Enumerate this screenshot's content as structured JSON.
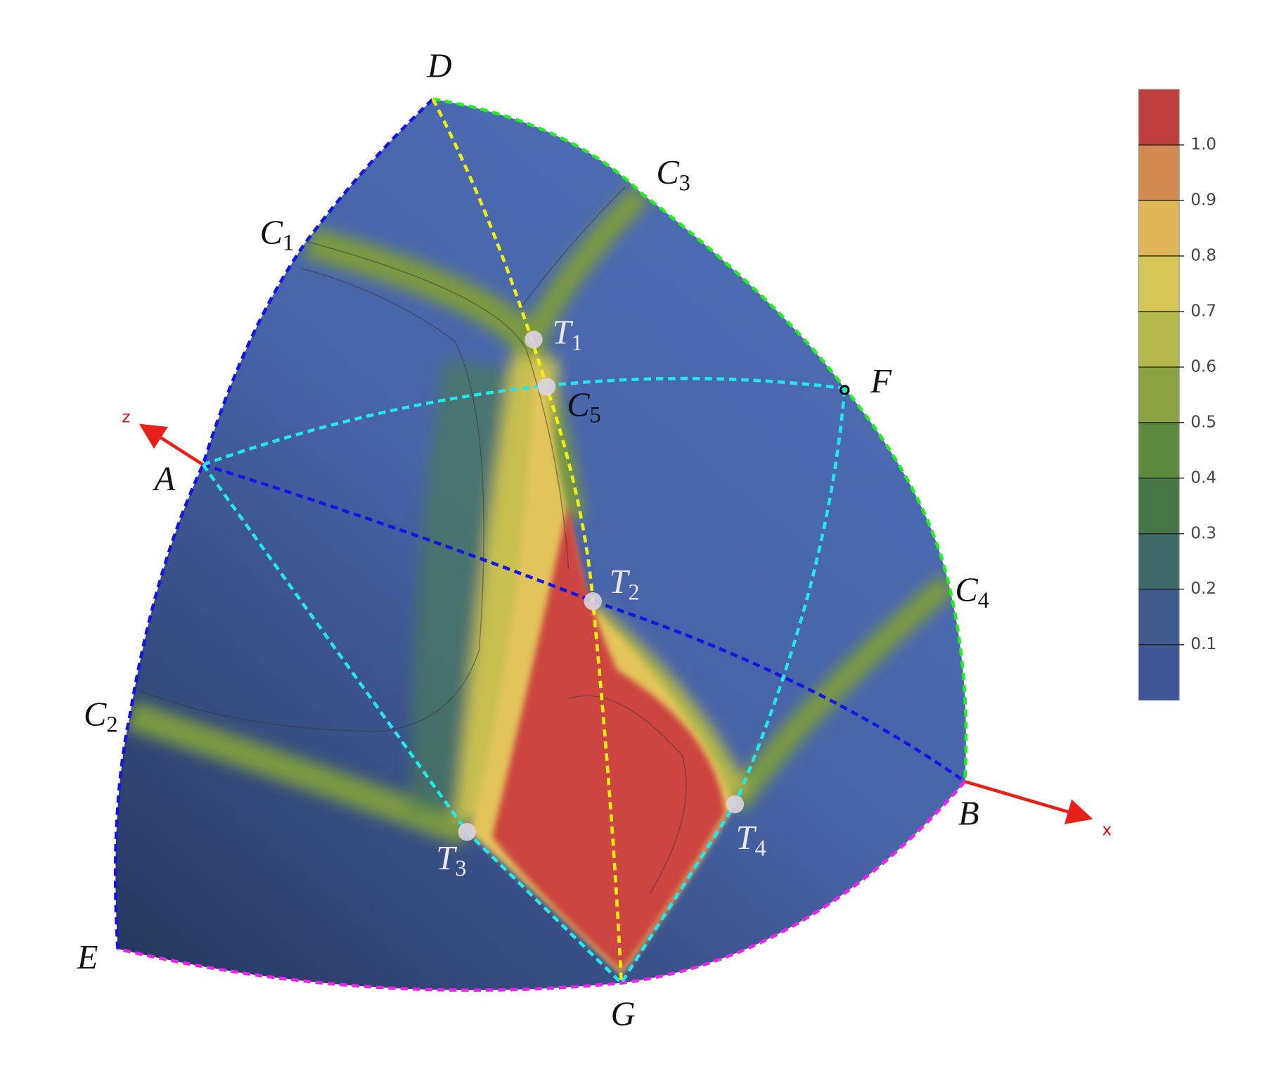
{
  "chart_data": {
    "type": "contour",
    "x_label": "x",
    "z_label": "z",
    "points": [
      {
        "label": "D"
      },
      {
        "label": "C",
        "sub": "3"
      },
      {
        "label": "C",
        "sub": "1"
      },
      {
        "label": "F"
      },
      {
        "label": "A"
      },
      {
        "label": "T",
        "sub": "1"
      },
      {
        "label": "C",
        "sub": "5"
      },
      {
        "label": "T",
        "sub": "2"
      },
      {
        "label": "C",
        "sub": "4"
      },
      {
        "label": "C",
        "sub": "2"
      },
      {
        "label": "B"
      },
      {
        "label": "T",
        "sub": "3"
      },
      {
        "label": "T",
        "sub": "4"
      },
      {
        "label": "E"
      },
      {
        "label": "G"
      }
    ],
    "ylim": [
      0,
      1.1
    ],
    "yticks": [
      0.1,
      0.2,
      0.3,
      0.4,
      0.5,
      0.6,
      0.7,
      0.8,
      0.9,
      {
        "value": 1,
        "label": "1.0"
      }
    ],
    "colors": [
      "#3f5797",
      "#405a8e",
      "#3f6a6a",
      "#477649",
      "#5e8a3f",
      "#8ba242",
      "#b4b84a",
      "#d6c655",
      "#e0b555",
      "#d28a50",
      "#bf3f3d"
    ]
  }
}
